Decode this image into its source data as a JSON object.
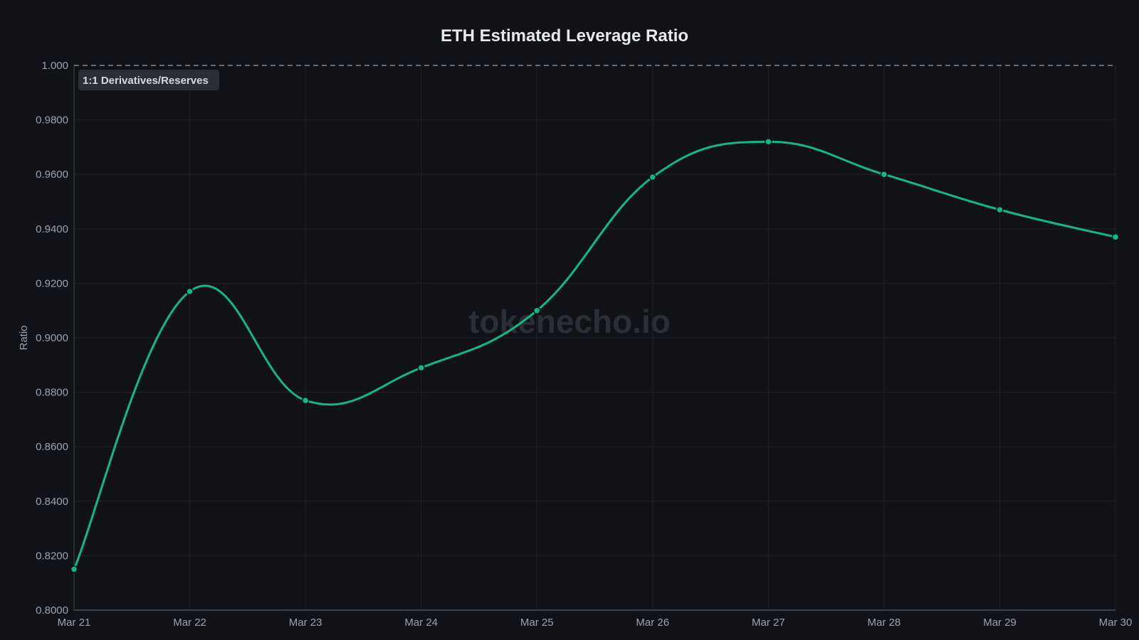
{
  "chart_data": {
    "type": "line",
    "title": "ETH Estimated Leverage Ratio",
    "ylabel": "Ratio",
    "xlabel": "",
    "categories": [
      "Mar 21",
      "Mar 22",
      "Mar 23",
      "Mar 24",
      "Mar 25",
      "Mar 26",
      "Mar 27",
      "Mar 28",
      "Mar 29",
      "Mar 30"
    ],
    "values": [
      0.815,
      0.917,
      0.877,
      0.889,
      0.91,
      0.959,
      0.972,
      0.96,
      0.947,
      0.937
    ],
    "ylim": [
      0.8,
      1.0
    ],
    "yticks": [
      "0.8000",
      "0.8200",
      "0.8400",
      "0.8600",
      "0.8800",
      "0.9000",
      "0.9200",
      "0.9400",
      "0.9600",
      "0.9800",
      "1.000"
    ],
    "reference_line": {
      "value": 1.0,
      "label": "1:1 Derivatives/Reserves",
      "style": "dashed"
    },
    "grid": true,
    "line_color": "#10b981",
    "watermark": "tokenecho.io"
  }
}
